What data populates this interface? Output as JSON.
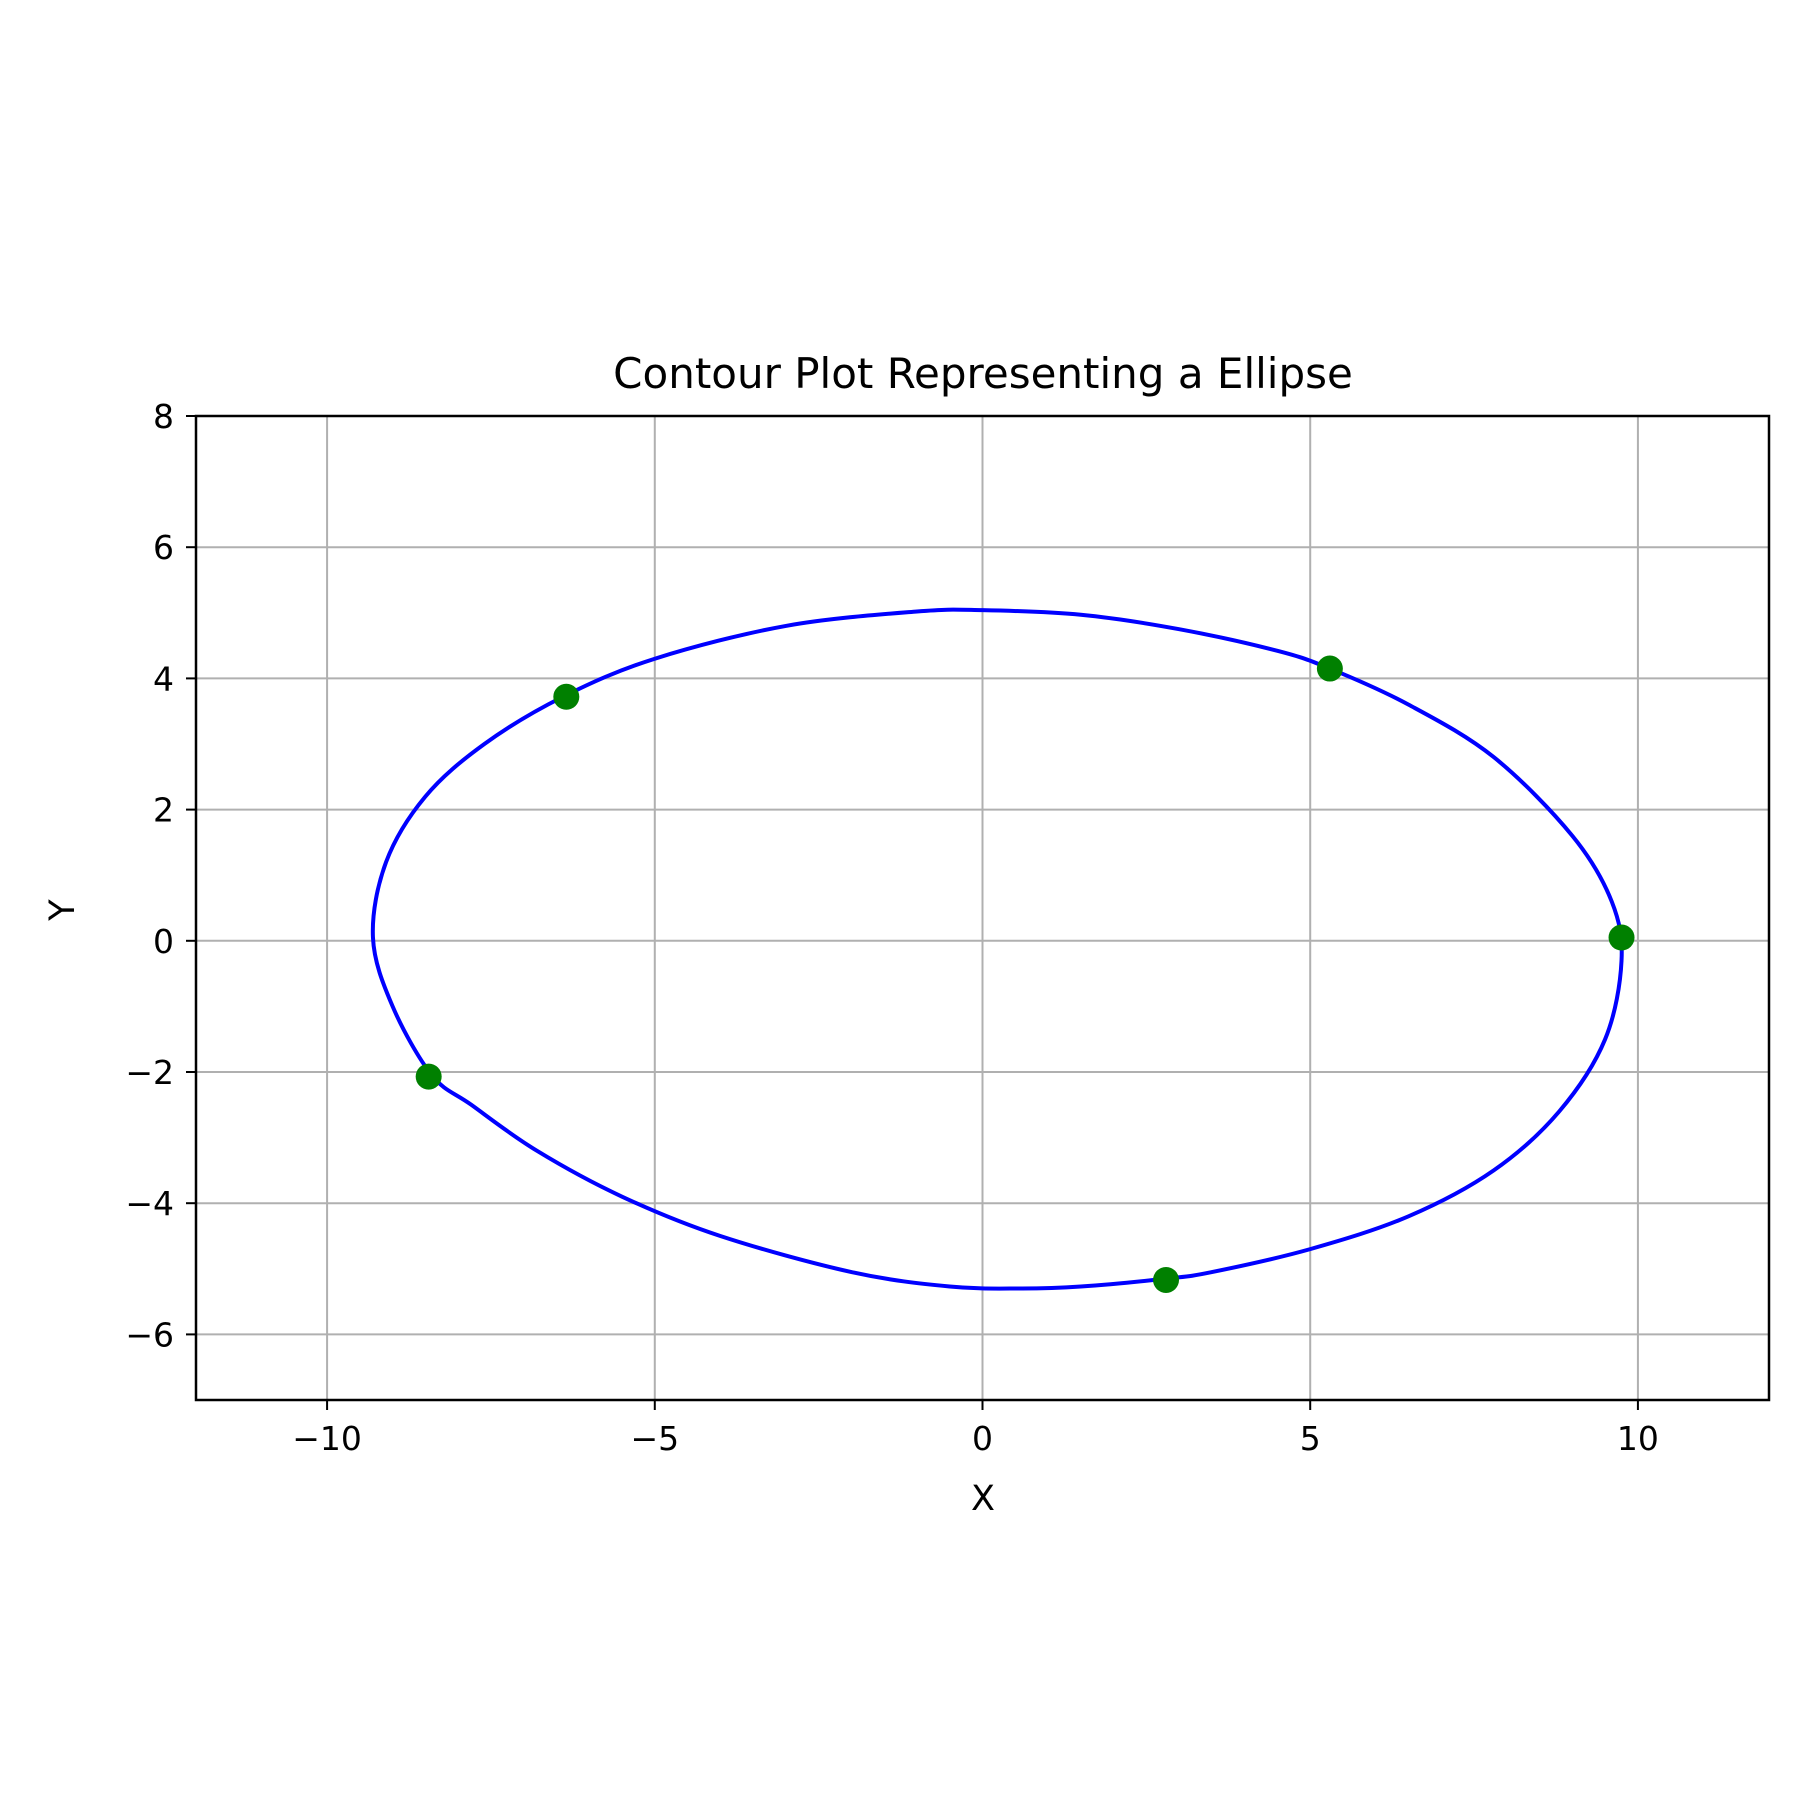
{
  "chart_data": {
    "type": "line",
    "title": "Contour Plot Representing a Ellipse",
    "xlabel": "X",
    "ylabel": "Y",
    "xlim": [
      -12,
      12
    ],
    "ylim": [
      -7,
      8
    ],
    "xticks": [
      -10,
      -5,
      0,
      5,
      10
    ],
    "xtick_labels": [
      "−10",
      "−5",
      "0",
      "5",
      "10"
    ],
    "yticks": [
      -6,
      -4,
      -2,
      0,
      2,
      4,
      6,
      8
    ],
    "ytick_labels": [
      "−6",
      "−4",
      "−2",
      "0",
      "2",
      "4",
      "6",
      "8"
    ],
    "grid": true,
    "ellipse": {
      "color": "#0000ff",
      "points": [
        [
          -9.3,
          0.05
        ],
        [
          -9.1,
          1.2
        ],
        [
          -8.5,
          2.2
        ],
        [
          -7.6,
          3.0
        ],
        [
          -6.4,
          3.72
        ],
        [
          -5.0,
          4.3
        ],
        [
          -3.0,
          4.8
        ],
        [
          -1.0,
          5.02
        ],
        [
          0.0,
          5.04
        ],
        [
          1.5,
          4.97
        ],
        [
          3.0,
          4.75
        ],
        [
          4.5,
          4.42
        ],
        [
          5.3,
          4.15
        ],
        [
          6.5,
          3.6
        ],
        [
          7.8,
          2.8
        ],
        [
          9.0,
          1.6
        ],
        [
          9.6,
          0.6
        ],
        [
          9.75,
          -0.3
        ],
        [
          9.5,
          -1.5
        ],
        [
          8.8,
          -2.6
        ],
        [
          7.8,
          -3.5
        ],
        [
          6.5,
          -4.2
        ],
        [
          5.0,
          -4.7
        ],
        [
          3.5,
          -5.05
        ],
        [
          2.8,
          -5.15
        ],
        [
          1.5,
          -5.27
        ],
        [
          0.6,
          -5.3
        ],
        [
          -0.5,
          -5.27
        ],
        [
          -2.0,
          -5.05
        ],
        [
          -4.0,
          -4.5
        ],
        [
          -5.5,
          -3.9
        ],
        [
          -6.8,
          -3.2
        ],
        [
          -7.8,
          -2.5
        ],
        [
          -8.4,
          -2.05
        ],
        [
          -9.0,
          -1.0
        ],
        [
          -9.3,
          0.05
        ]
      ]
    },
    "scatter": {
      "color": "#008000",
      "points": [
        [
          -6.35,
          3.72
        ],
        [
          5.3,
          4.15
        ],
        [
          9.75,
          0.05
        ],
        [
          -8.45,
          -2.07
        ],
        [
          2.8,
          -5.17
        ]
      ]
    }
  }
}
